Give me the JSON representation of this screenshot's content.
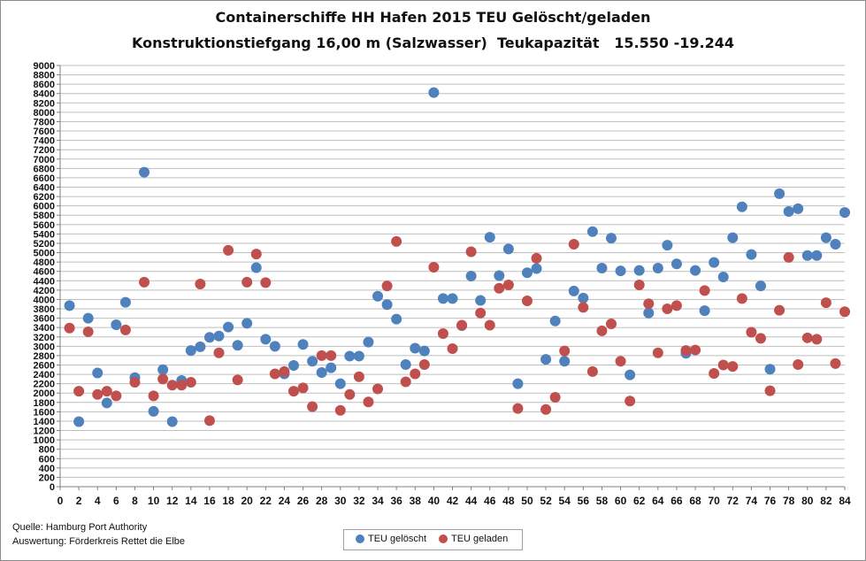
{
  "title_line1": "Containerschiffe HH Hafen 2015 TEU Gelöscht/geladen",
  "title_line2": "Konstruktionstiefgang 16,00 m (Salzwasser)  Teukapazität   15.550 -19.244",
  "source_line1": "Quelle: Hamburg Port Authority",
  "source_line2": "Auswertung: Förderkreis Rettet die Elbe",
  "chart_data": {
    "type": "scatter",
    "x_range": [
      0,
      84
    ],
    "x_ticks": [
      0,
      2,
      4,
      6,
      8,
      10,
      12,
      14,
      16,
      18,
      20,
      22,
      24,
      26,
      28,
      30,
      32,
      34,
      36,
      38,
      40,
      42,
      44,
      46,
      48,
      50,
      52,
      54,
      56,
      58,
      60,
      62,
      64,
      66,
      68,
      70,
      72,
      74,
      76,
      78,
      80,
      82,
      84
    ],
    "y_range": [
      0,
      9000
    ],
    "y_tick_step": 200,
    "grid": true,
    "legend_position": "bottom-center",
    "series": [
      {
        "name": "TEU gelöscht",
        "color": "#4f81bd",
        "x": [
          1,
          2,
          3,
          4,
          5,
          6,
          7,
          8,
          9,
          10,
          11,
          12,
          13,
          14,
          15,
          16,
          17,
          18,
          19,
          20,
          21,
          22,
          23,
          24,
          25,
          26,
          27,
          28,
          29,
          30,
          31,
          32,
          33,
          34,
          35,
          36,
          37,
          38,
          39,
          40,
          41,
          42,
          43,
          44,
          45,
          46,
          47,
          48,
          49,
          50,
          51,
          52,
          53,
          54,
          55,
          56,
          57,
          58,
          59,
          60,
          61,
          62,
          63,
          64,
          65,
          66,
          67,
          68,
          69,
          70,
          71,
          72,
          73,
          74,
          75,
          76,
          77,
          78,
          79,
          80,
          81,
          82,
          83,
          84
        ],
        "y": [
          3870,
          1390,
          3600,
          2430,
          1790,
          3460,
          3940,
          2330,
          6720,
          1610,
          2500,
          1390,
          2270,
          2910,
          2990,
          3190,
          3220,
          3410,
          3020,
          3490,
          4680,
          3150,
          3000,
          2410,
          2590,
          3040,
          2680,
          2440,
          2540,
          2200,
          2790,
          2790,
          3090,
          4070,
          3890,
          3580,
          2610,
          2960,
          2900,
          8420,
          4020,
          4020,
          3440,
          4500,
          3980,
          5330,
          4510,
          5080,
          2200,
          4570,
          4660,
          2720,
          3540,
          2680,
          4180,
          4030,
          5450,
          4670,
          5310,
          4610,
          2390,
          4620,
          3710,
          4670,
          5160,
          4760,
          2850,
          4620,
          3760,
          4790,
          4480,
          5320,
          5980,
          4960,
          4290,
          2510,
          6260,
          5880,
          5940,
          4940,
          4940,
          5320,
          5180,
          5860
        ]
      },
      {
        "name": "TEU geladen",
        "color": "#c0504d",
        "x": [
          1,
          2,
          3,
          4,
          5,
          6,
          7,
          8,
          9,
          10,
          11,
          12,
          13,
          14,
          15,
          16,
          17,
          18,
          19,
          20,
          21,
          22,
          23,
          24,
          25,
          26,
          27,
          28,
          29,
          30,
          31,
          32,
          33,
          34,
          35,
          36,
          37,
          38,
          39,
          40,
          41,
          42,
          43,
          44,
          45,
          46,
          47,
          48,
          49,
          50,
          51,
          52,
          53,
          54,
          55,
          56,
          57,
          58,
          59,
          60,
          61,
          62,
          63,
          64,
          65,
          66,
          67,
          68,
          69,
          70,
          71,
          72,
          73,
          74,
          75,
          76,
          77,
          78,
          79,
          80,
          81,
          82,
          83,
          84
        ],
        "y": [
          3390,
          2040,
          3310,
          1970,
          2040,
          1940,
          3350,
          2230,
          4370,
          1940,
          2300,
          2170,
          2170,
          2230,
          4330,
          1410,
          2860,
          5050,
          2280,
          4370,
          4970,
          4360,
          2410,
          2460,
          2040,
          2110,
          1710,
          2800,
          2800,
          1630,
          1970,
          2350,
          1810,
          2090,
          4290,
          5240,
          2240,
          2410,
          2610,
          4690,
          3270,
          2950,
          3450,
          5020,
          3710,
          3450,
          4240,
          4310,
          1670,
          3970,
          4880,
          1650,
          1910,
          2900,
          5180,
          3830,
          2460,
          3330,
          3480,
          2680,
          1830,
          4310,
          3910,
          2860,
          3800,
          3870,
          2910,
          2920,
          4190,
          2420,
          2600,
          2570,
          4020,
          3300,
          3170,
          2050,
          3770,
          4900,
          2610,
          3180,
          3150,
          3930,
          2630,
          3740
        ]
      }
    ]
  }
}
